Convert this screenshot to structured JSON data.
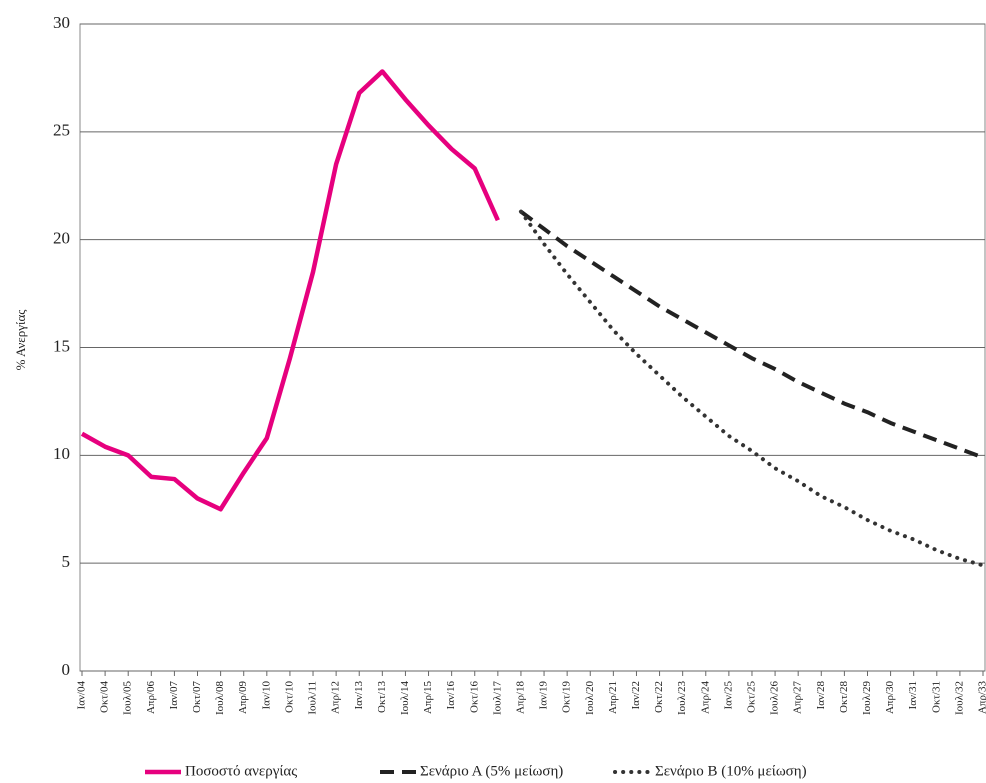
{
  "chart_data": {
    "type": "line",
    "y_label": "% Ανεργίας",
    "categories": [
      "Ιαν/04",
      "Οκτ/04",
      "Ιουλ/05",
      "Απρ/06",
      "Ιαν/07",
      "Οκτ/07",
      "Ιουλ/08",
      "Απρ/09",
      "Ιαν/10",
      "Οκτ/10",
      "Ιουλ/11",
      "Απρ/12",
      "Ιαν/13",
      "Οκτ/13",
      "Ιουλ/14",
      "Απρ/15",
      "Ιαν/16",
      "Οκτ/16",
      "Ιουλ/17",
      "Απρ/18",
      "Ιαν/19",
      "Οκτ/19",
      "Ιουλ/20",
      "Απρ/21",
      "Ιαν/22",
      "Οκτ/22",
      "Ιουλ/23",
      "Απρ/24",
      "Ιαν/25",
      "Οκτ/25",
      "Ιουλ/26",
      "Απρ/27",
      "Ιαν/28",
      "Οκτ/28",
      "Ιουλ/29",
      "Απρ/30",
      "Ιαν/31",
      "Οκτ/31",
      "Ιουλ/32",
      "Απρ/33"
    ],
    "series": [
      {
        "name": "Ποσοστό ανεργίας",
        "color": "#e6007e",
        "dash": "solid",
        "values": [
          11.0,
          10.4,
          10.0,
          9.0,
          8.9,
          8.0,
          7.5,
          9.2,
          10.8,
          14.5,
          18.5,
          23.5,
          26.8,
          27.8,
          26.5,
          25.3,
          24.2,
          23.3,
          20.9,
          null,
          null,
          null,
          null,
          null,
          null,
          null,
          null,
          null,
          null,
          null,
          null,
          null,
          null,
          null,
          null,
          null,
          null,
          null,
          null,
          null
        ]
      },
      {
        "name": "Σενάριο Α (5% μείωση)",
        "color": "#222222",
        "dash": "dashed",
        "values": [
          null,
          null,
          null,
          null,
          null,
          null,
          null,
          null,
          null,
          null,
          null,
          null,
          null,
          null,
          null,
          null,
          null,
          null,
          null,
          21.3,
          20.5,
          19.7,
          19.0,
          18.3,
          17.6,
          16.9,
          16.3,
          15.7,
          15.1,
          14.5,
          14.0,
          13.4,
          12.9,
          12.4,
          12.0,
          11.5,
          11.1,
          10.7,
          10.3,
          9.9
        ]
      },
      {
        "name": "Σενάριο Β (10% μείωση)",
        "color": "#333333",
        "dash": "dotted",
        "values": [
          null,
          null,
          null,
          null,
          null,
          null,
          null,
          null,
          null,
          null,
          null,
          null,
          null,
          null,
          null,
          null,
          null,
          null,
          null,
          21.3,
          19.8,
          18.4,
          17.1,
          15.8,
          14.7,
          13.7,
          12.7,
          11.8,
          10.9,
          10.2,
          9.4,
          8.8,
          8.1,
          7.6,
          7.0,
          6.5,
          6.1,
          5.6,
          5.2,
          4.9
        ]
      }
    ],
    "ylim": [
      0,
      30
    ],
    "yticks": [
      0,
      5,
      10,
      15,
      20,
      25,
      30
    ],
    "grid": true,
    "legend": "bottom"
  }
}
